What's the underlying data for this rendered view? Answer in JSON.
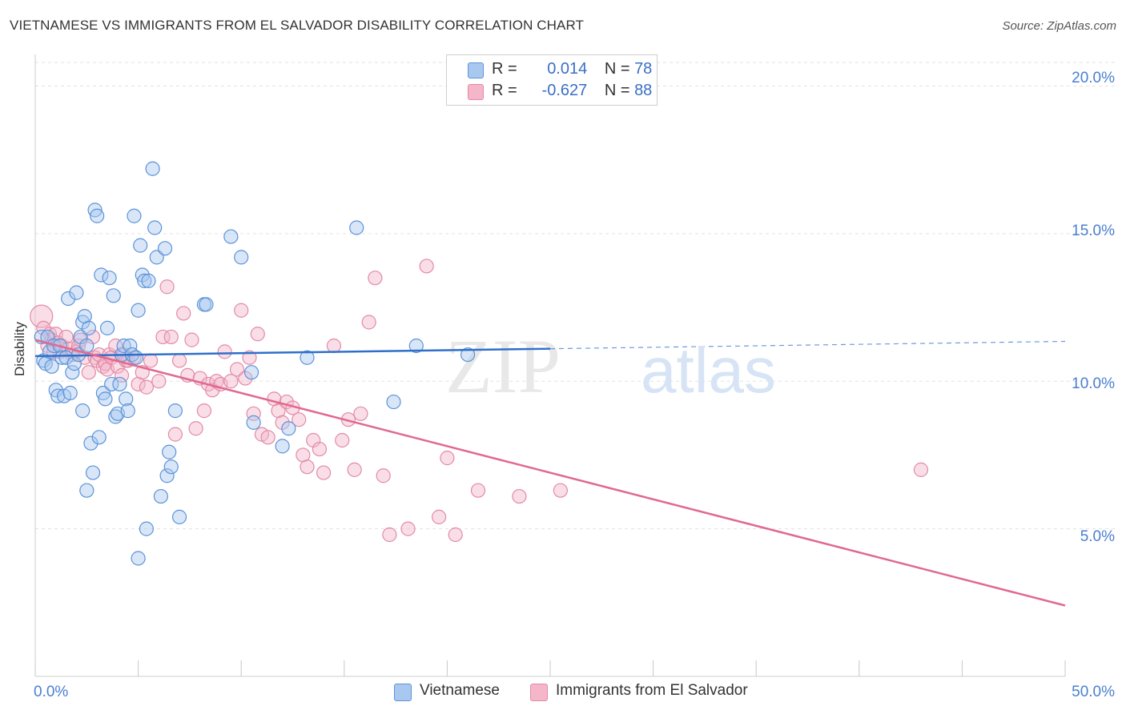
{
  "title": "VIETNAMESE VS IMMIGRANTS FROM EL SALVADOR DISABILITY CORRELATION CHART",
  "source": "Source: ZipAtlas.com",
  "watermark": "ZIPatlas",
  "colors": {
    "blue_fill": "#a9c8f0",
    "blue_stroke": "#5b93d8",
    "blue_line": "#2f6fca",
    "pink_fill": "#f5b6c9",
    "pink_stroke": "#e28aa6",
    "pink_line": "#e0698f",
    "tick_text": "#4a7fd0"
  },
  "legend": {
    "rows": [
      {
        "r_label": "R =",
        "r_value": "0.014",
        "n_label": "N =",
        "n_value": "78"
      },
      {
        "r_label": "R =",
        "r_value": "-0.627",
        "n_label": "N =",
        "n_value": "88"
      }
    ]
  },
  "bottom_legend": [
    "Vietnamese",
    "Immigrants from El Salvador"
  ],
  "axes": {
    "ylabel": "Disability",
    "x_min_label": "0.0%",
    "x_max_label": "50.0%",
    "y_tick_labels": [
      "20.0%",
      "15.0%",
      "10.0%",
      "5.0%"
    ]
  },
  "chart_data": {
    "type": "scatter",
    "xlabel": "",
    "ylabel": "Disability",
    "xlim": [
      0,
      50
    ],
    "ylim": [
      0,
      20.8
    ],
    "y_ticks": [
      5,
      10,
      15,
      20
    ],
    "grid": true,
    "legend_position": "top-center",
    "series": [
      {
        "name": "Vietnamese",
        "r": 0.014,
        "n": 78,
        "trend": {
          "x": [
            0,
            25
          ],
          "y": [
            10.85,
            11.1
          ],
          "dashed_extension": {
            "x": [
              25,
              50
            ],
            "y": [
              11.1,
              11.35
            ]
          }
        },
        "points": [
          [
            0.3,
            11.5
          ],
          [
            0.4,
            10.7
          ],
          [
            0.5,
            10.6
          ],
          [
            0.6,
            11.5
          ],
          [
            0.7,
            11.0
          ],
          [
            0.8,
            10.5
          ],
          [
            0.9,
            11.2
          ],
          [
            1.0,
            9.7
          ],
          [
            1.1,
            9.5
          ],
          [
            1.2,
            11.2
          ],
          [
            1.3,
            10.8
          ],
          [
            1.4,
            9.5
          ],
          [
            1.5,
            10.8
          ],
          [
            1.6,
            12.8
          ],
          [
            1.7,
            9.6
          ],
          [
            1.8,
            10.3
          ],
          [
            1.9,
            10.6
          ],
          [
            2.0,
            13.0
          ],
          [
            2.1,
            10.9
          ],
          [
            2.2,
            11.5
          ],
          [
            2.3,
            12.0
          ],
          [
            2.4,
            12.2
          ],
          [
            2.5,
            11.2
          ],
          [
            2.6,
            11.8
          ],
          [
            2.3,
            9.0
          ],
          [
            2.5,
            6.3
          ],
          [
            2.7,
            7.9
          ],
          [
            2.8,
            6.9
          ],
          [
            2.9,
            15.8
          ],
          [
            3.0,
            15.6
          ],
          [
            3.1,
            8.1
          ],
          [
            3.2,
            13.6
          ],
          [
            3.3,
            9.6
          ],
          [
            3.4,
            9.4
          ],
          [
            3.5,
            11.8
          ],
          [
            3.6,
            13.5
          ],
          [
            3.7,
            9.9
          ],
          [
            3.8,
            12.9
          ],
          [
            3.9,
            8.8
          ],
          [
            4.0,
            8.9
          ],
          [
            4.1,
            9.9
          ],
          [
            4.2,
            10.9
          ],
          [
            4.3,
            11.2
          ],
          [
            4.4,
            9.4
          ],
          [
            4.5,
            9.0
          ],
          [
            4.6,
            11.2
          ],
          [
            4.7,
            10.9
          ],
          [
            4.8,
            15.6
          ],
          [
            4.9,
            10.8
          ],
          [
            5.0,
            12.4
          ],
          [
            5.1,
            14.6
          ],
          [
            5.0,
            4.0
          ],
          [
            5.2,
            13.6
          ],
          [
            5.3,
            13.4
          ],
          [
            5.4,
            5.0
          ],
          [
            5.5,
            13.4
          ],
          [
            5.7,
            17.2
          ],
          [
            5.8,
            15.2
          ],
          [
            5.9,
            14.2
          ],
          [
            6.1,
            6.1
          ],
          [
            6.3,
            14.5
          ],
          [
            6.4,
            6.8
          ],
          [
            6.5,
            7.6
          ],
          [
            6.6,
            7.1
          ],
          [
            6.8,
            9.0
          ],
          [
            7.0,
            5.4
          ],
          [
            8.2,
            12.6
          ],
          [
            8.3,
            12.6
          ],
          [
            9.5,
            14.9
          ],
          [
            10.0,
            14.2
          ],
          [
            10.5,
            10.3
          ],
          [
            10.6,
            8.6
          ],
          [
            12.0,
            7.8
          ],
          [
            12.3,
            8.4
          ],
          [
            13.2,
            10.8
          ],
          [
            15.6,
            15.2
          ],
          [
            17.4,
            9.3
          ],
          [
            18.5,
            11.2
          ],
          [
            21.0,
            10.9
          ]
        ]
      },
      {
        "name": "Immigrants from El Salvador",
        "r": -0.627,
        "n": 88,
        "trend": {
          "x": [
            0,
            50
          ],
          "y": [
            11.4,
            2.4
          ]
        },
        "points": [
          [
            0.3,
            12.2
          ],
          [
            0.4,
            11.8
          ],
          [
            0.6,
            11.2
          ],
          [
            0.7,
            11.6
          ],
          [
            0.8,
            11.4
          ],
          [
            0.9,
            11.0
          ],
          [
            1.0,
            11.6
          ],
          [
            1.1,
            11.3
          ],
          [
            1.2,
            11.0
          ],
          [
            1.3,
            11.2
          ],
          [
            1.5,
            11.5
          ],
          [
            1.6,
            11.1
          ],
          [
            1.8,
            10.9
          ],
          [
            2.0,
            11.0
          ],
          [
            2.1,
            11.2
          ],
          [
            2.2,
            11.4
          ],
          [
            2.4,
            10.8
          ],
          [
            2.6,
            10.3
          ],
          [
            2.8,
            11.5
          ],
          [
            2.9,
            10.8
          ],
          [
            3.0,
            10.7
          ],
          [
            3.1,
            10.9
          ],
          [
            3.3,
            10.5
          ],
          [
            3.4,
            10.6
          ],
          [
            3.5,
            10.4
          ],
          [
            3.6,
            10.9
          ],
          [
            3.7,
            10.8
          ],
          [
            3.9,
            11.2
          ],
          [
            4.0,
            10.5
          ],
          [
            4.2,
            10.2
          ],
          [
            4.3,
            10.9
          ],
          [
            4.4,
            10.7
          ],
          [
            4.5,
            10.7
          ],
          [
            4.8,
            10.8
          ],
          [
            5.0,
            9.9
          ],
          [
            5.2,
            10.3
          ],
          [
            5.4,
            9.8
          ],
          [
            5.6,
            10.7
          ],
          [
            6.0,
            10.0
          ],
          [
            6.2,
            11.5
          ],
          [
            6.4,
            13.2
          ],
          [
            6.6,
            11.5
          ],
          [
            6.8,
            8.2
          ],
          [
            7.0,
            10.7
          ],
          [
            7.2,
            12.3
          ],
          [
            7.4,
            10.2
          ],
          [
            7.6,
            11.4
          ],
          [
            7.8,
            8.4
          ],
          [
            8.0,
            10.1
          ],
          [
            8.2,
            9.0
          ],
          [
            8.4,
            9.9
          ],
          [
            8.6,
            9.7
          ],
          [
            8.8,
            10.0
          ],
          [
            9.0,
            9.9
          ],
          [
            9.2,
            11.0
          ],
          [
            9.5,
            10.0
          ],
          [
            9.8,
            10.4
          ],
          [
            10.0,
            12.4
          ],
          [
            10.2,
            10.1
          ],
          [
            10.4,
            10.8
          ],
          [
            10.6,
            8.9
          ],
          [
            10.8,
            11.6
          ],
          [
            11.0,
            8.2
          ],
          [
            11.3,
            8.1
          ],
          [
            11.6,
            9.4
          ],
          [
            11.8,
            9.0
          ],
          [
            12.0,
            8.6
          ],
          [
            12.2,
            9.3
          ],
          [
            12.5,
            9.1
          ],
          [
            12.8,
            8.7
          ],
          [
            13.0,
            7.5
          ],
          [
            13.2,
            7.1
          ],
          [
            13.5,
            8.0
          ],
          [
            13.8,
            7.7
          ],
          [
            14.0,
            6.9
          ],
          [
            14.5,
            11.2
          ],
          [
            14.9,
            8.0
          ],
          [
            15.2,
            8.7
          ],
          [
            15.5,
            7.0
          ],
          [
            15.8,
            8.9
          ],
          [
            16.2,
            12.0
          ],
          [
            16.5,
            13.5
          ],
          [
            16.9,
            6.8
          ],
          [
            17.2,
            4.8
          ],
          [
            18.1,
            5.0
          ],
          [
            19.0,
            13.9
          ],
          [
            19.6,
            5.4
          ],
          [
            20.0,
            7.4
          ],
          [
            20.4,
            4.8
          ],
          [
            21.5,
            6.3
          ],
          [
            23.5,
            6.1
          ],
          [
            25.5,
            6.3
          ],
          [
            43.0,
            7.0
          ]
        ]
      }
    ]
  }
}
